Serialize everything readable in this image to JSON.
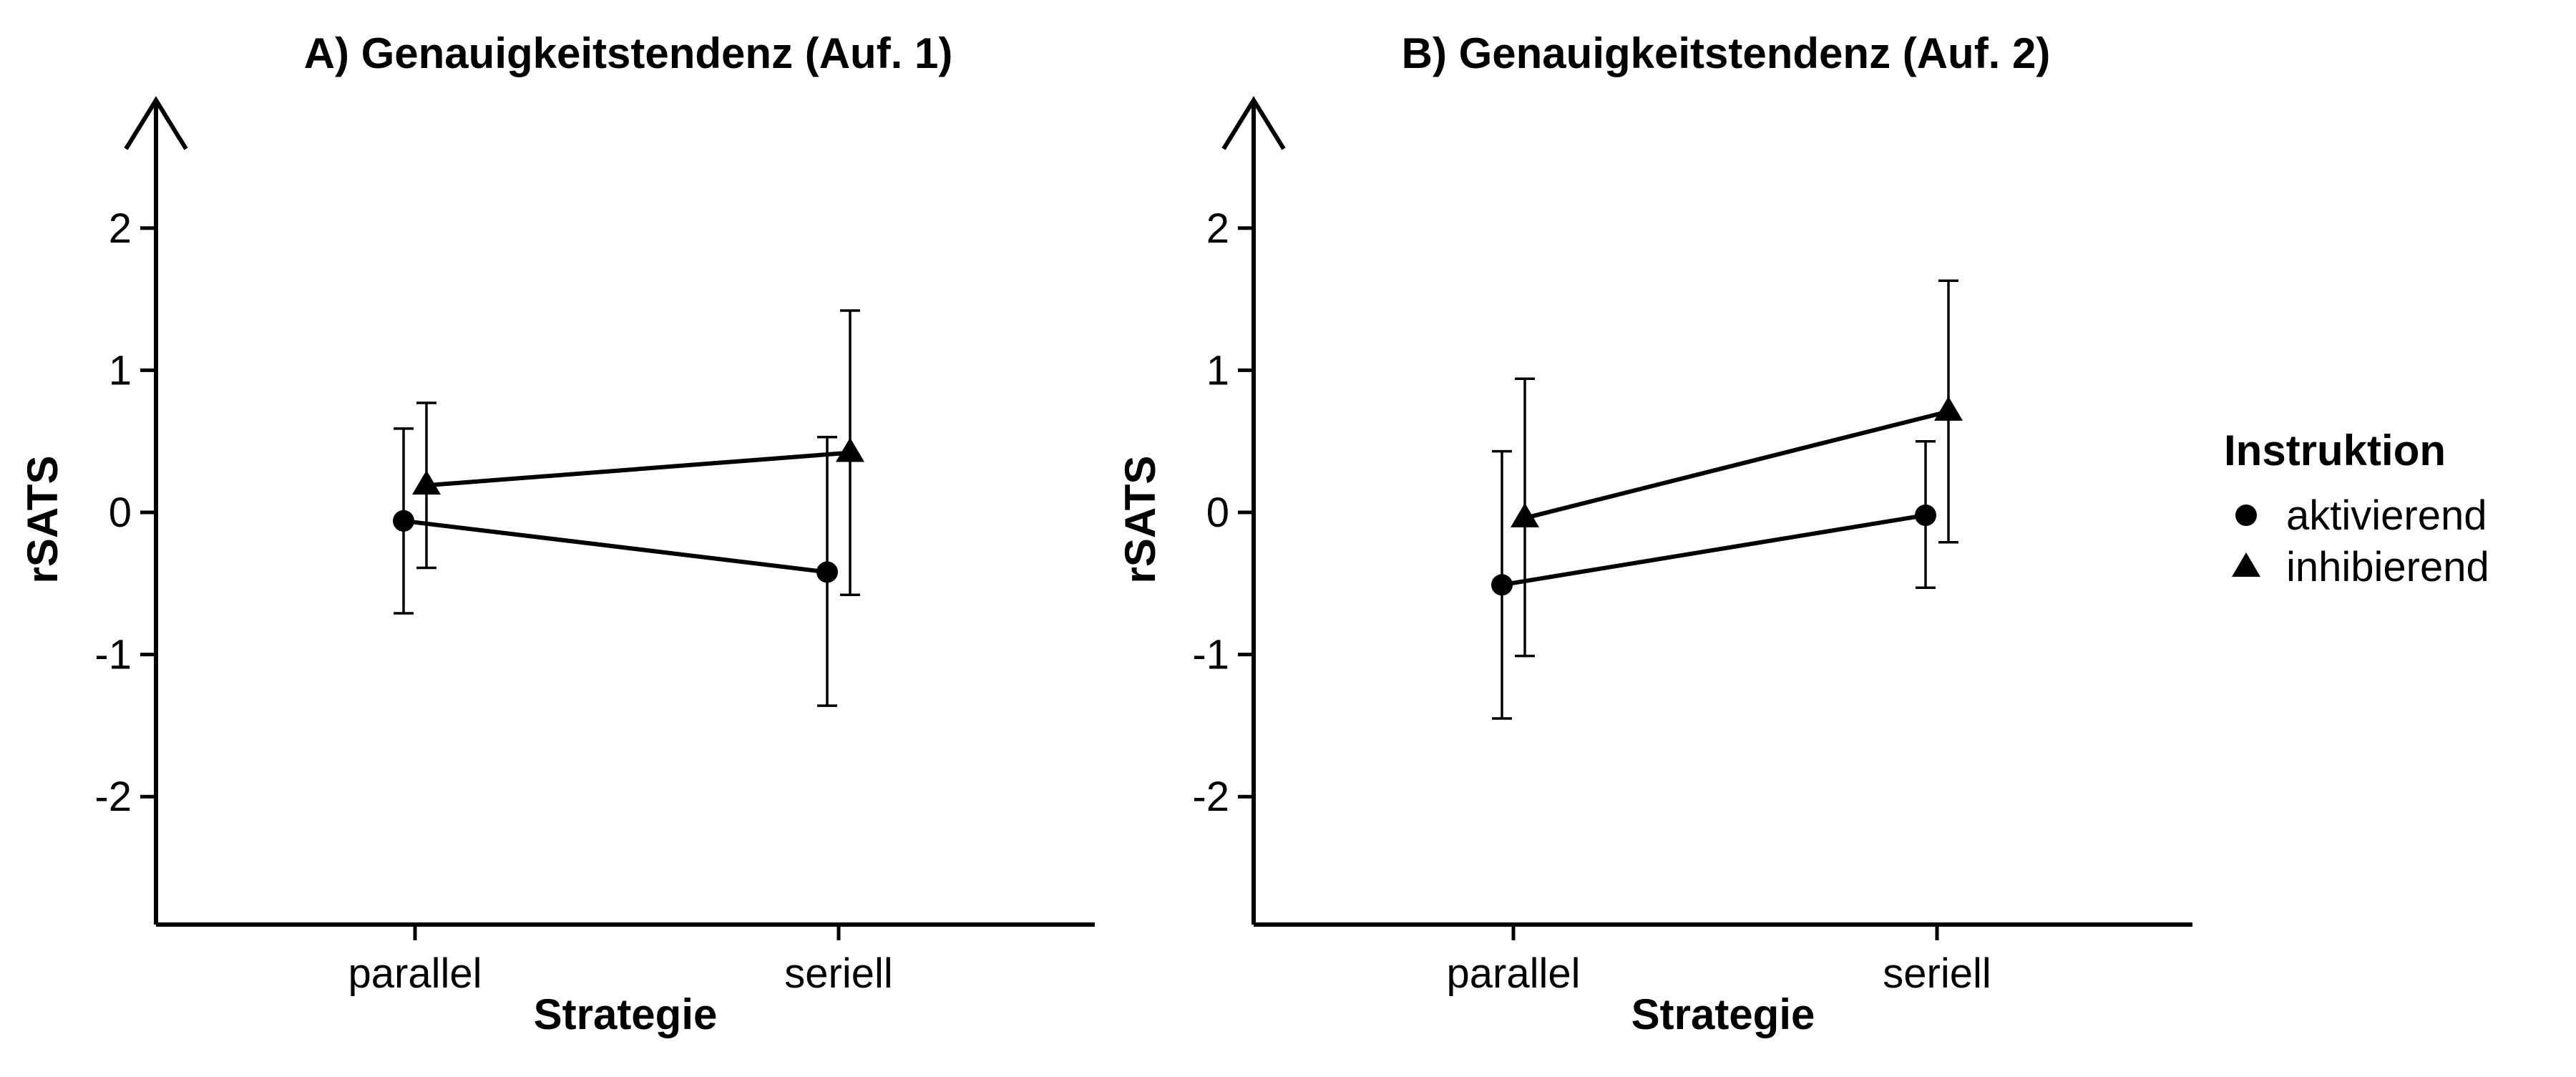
{
  "chart_data": [
    {
      "type": "line",
      "title": "A) Genauigkeitstendenz (Auf. 1)",
      "xlabel": "Strategie",
      "ylabel": "rSATS",
      "categories": [
        "parallel",
        "seriell"
      ],
      "ylim": [
        -2.9,
        2.9
      ],
      "yticks": [
        2,
        1,
        0,
        -1,
        -2
      ],
      "ytick_labels": [
        "2",
        "1",
        "0",
        "-1",
        "-2"
      ],
      "series": [
        {
          "name": "aktivierend",
          "marker": "circle",
          "values": [
            -0.06,
            -0.42
          ],
          "err_low": [
            -0.71,
            -1.36
          ],
          "err_high": [
            0.59,
            0.53
          ]
        },
        {
          "name": "inhibierend",
          "marker": "triangle",
          "values": [
            0.19,
            0.42
          ],
          "err_low": [
            -0.39,
            -0.58
          ],
          "err_high": [
            0.77,
            1.42
          ]
        }
      ]
    },
    {
      "type": "line",
      "title": "B) Genauigkeitstendenz (Auf. 2)",
      "xlabel": "Strategie",
      "ylabel": "rSATS",
      "categories": [
        "parallel",
        "seriell"
      ],
      "ylim": [
        -2.9,
        2.9
      ],
      "yticks": [
        2,
        1,
        0,
        -1,
        -2
      ],
      "ytick_labels": [
        "2",
        "1",
        "0",
        "-1",
        "-2"
      ],
      "series": [
        {
          "name": "aktivierend",
          "marker": "circle",
          "values": [
            -0.51,
            -0.02
          ],
          "err_low": [
            -1.45,
            -0.53
          ],
          "err_high": [
            0.43,
            0.5
          ]
        },
        {
          "name": "inhibierend",
          "marker": "triangle",
          "values": [
            -0.04,
            0.71
          ],
          "err_low": [
            -1.01,
            -0.21
          ],
          "err_high": [
            0.94,
            1.63
          ]
        }
      ]
    }
  ],
  "legend": {
    "title": "Instruktion",
    "items": [
      {
        "label": "aktivierend",
        "marker": "circle"
      },
      {
        "label": "inhibierend",
        "marker": "triangle"
      }
    ]
  }
}
